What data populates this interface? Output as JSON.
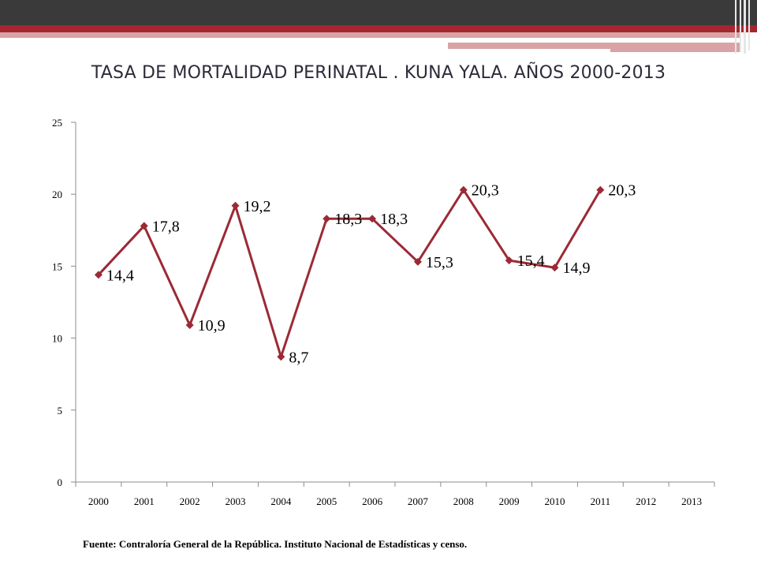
{
  "slide": {
    "title": "TASA DE MORTALIDAD PERINATAL .  KUNA YALA. AÑOS 2000-2013",
    "source": "Fuente: Contraloría General de la República. Instituto Nacional de Estadísticas y censo."
  },
  "colors": {
    "header_dark": "#3a3a3a",
    "header_red": "#a5262f",
    "header_pink": "#d9a3a6",
    "line": "#9b2a35",
    "axis": "#8c8c8c"
  },
  "chart_data": {
    "type": "line",
    "title": "TASA DE MORTALIDAD PERINATAL .  KUNA YALA. AÑOS 2000-2013",
    "xlabel": "",
    "ylabel": "",
    "categories": [
      "2000",
      "2001",
      "2002",
      "2003",
      "2004",
      "2005",
      "2006",
      "2007",
      "2008",
      "2009",
      "2010",
      "2011",
      "2012",
      "2013"
    ],
    "series": [
      {
        "values": [
          14.4,
          17.8,
          10.9,
          19.2,
          8.7,
          18.3,
          18.3,
          15.3,
          20.3,
          15.4,
          14.9,
          20.3,
          null,
          null
        ]
      }
    ],
    "data_labels": [
      "14,4",
      "17,8",
      "10,9",
      "19,2",
      "8,7",
      "18,3",
      "18,3",
      "15,3",
      "20,3",
      "15,4",
      "14,9",
      "20,3"
    ],
    "ylim": [
      0,
      25
    ],
    "yticks": [
      0,
      5,
      10,
      15,
      20,
      25
    ],
    "grid": false,
    "legend": "none"
  }
}
